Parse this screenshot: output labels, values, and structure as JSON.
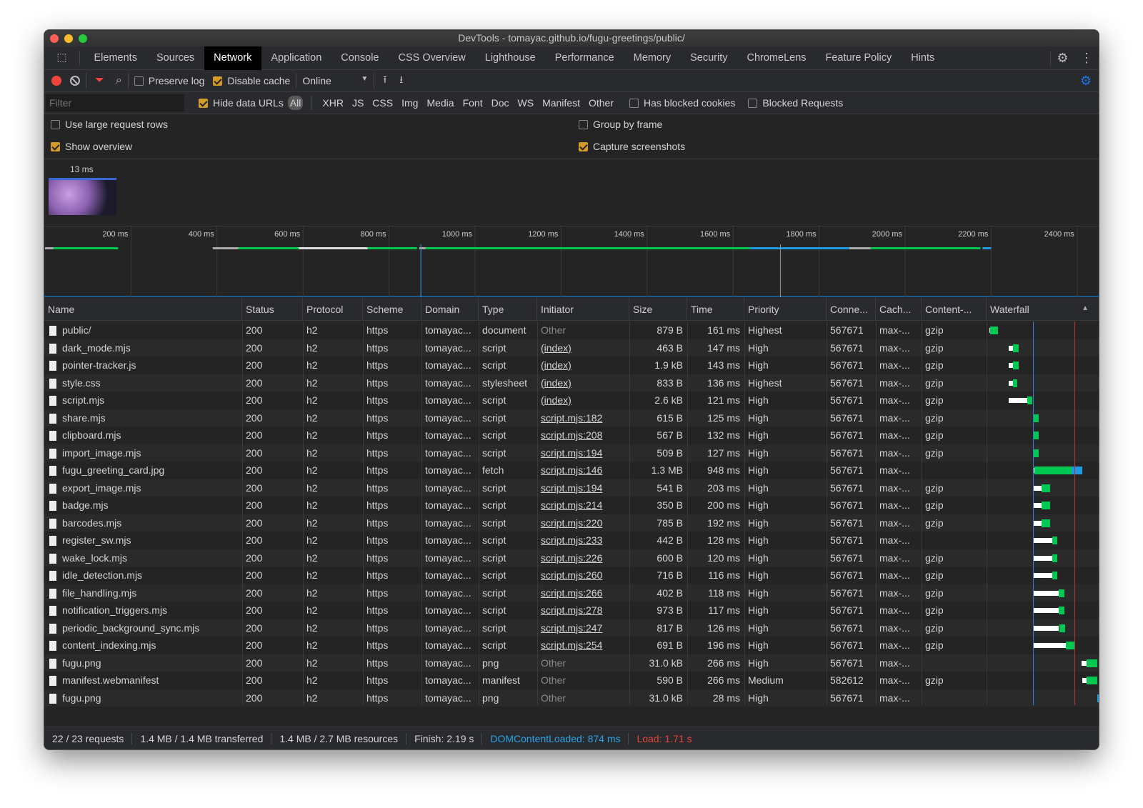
{
  "window": {
    "title": "DevTools - tomayac.github.io/fugu-greetings/public/"
  },
  "tabs": [
    "Elements",
    "Sources",
    "Network",
    "Application",
    "Console",
    "CSS Overview",
    "Lighthouse",
    "Performance",
    "Memory",
    "Security",
    "ChromeLens",
    "Feature Policy",
    "Hints"
  ],
  "active_tab": "Network",
  "toolbar": {
    "preserve_log": "Preserve log",
    "preserve_log_checked": false,
    "disable_cache": "Disable cache",
    "disable_cache_checked": true,
    "throttling": "Online"
  },
  "filter": {
    "placeholder": "Filter",
    "hide_data_urls": "Hide data URLs",
    "hide_data_urls_checked": true,
    "types": [
      "All",
      "XHR",
      "JS",
      "CSS",
      "Img",
      "Media",
      "Font",
      "Doc",
      "WS",
      "Manifest",
      "Other"
    ],
    "active_type": "All",
    "has_blocked_cookies": "Has blocked cookies",
    "blocked_requests": "Blocked Requests"
  },
  "settings": {
    "large_rows": "Use large request rows",
    "large_rows_checked": false,
    "group_by_frame": "Group by frame",
    "group_by_frame_checked": false,
    "show_overview": "Show overview",
    "show_overview_checked": true,
    "capture_screenshots": "Capture screenshots",
    "capture_screenshots_checked": true
  },
  "screenshot": {
    "time": "13 ms"
  },
  "overview": {
    "ticks": [
      "200 ms",
      "400 ms",
      "600 ms",
      "800 ms",
      "1000 ms",
      "1200 ms",
      "1400 ms",
      "1600 ms",
      "1800 ms",
      "2000 ms",
      "2200 ms",
      "2400 ms"
    ]
  },
  "columns": [
    "Name",
    "Status",
    "Protocol",
    "Scheme",
    "Domain",
    "Type",
    "Initiator",
    "Size",
    "Time",
    "Priority",
    "Conne...",
    "Cach...",
    "Content-...",
    "Waterfall"
  ],
  "rows": [
    {
      "name": "public/",
      "status": "200",
      "protocol": "h2",
      "scheme": "https",
      "domain": "tomayac...",
      "type": "document",
      "initiator": "Other",
      "size": "879 B",
      "time": "161 ms",
      "priority": "Highest",
      "conn": "567671",
      "cache": "max-...",
      "encoding": "gzip",
      "wf": [
        0,
        20,
        180
      ]
    },
    {
      "name": "dark_mode.mjs",
      "status": "200",
      "protocol": "h2",
      "scheme": "https",
      "domain": "tomayac...",
      "type": "script",
      "initiator": "(index)",
      "size": "463 B",
      "time": "147 ms",
      "priority": "High",
      "conn": "567671",
      "cache": "max-...",
      "encoding": "gzip",
      "wf": [
        390,
        475,
        590
      ]
    },
    {
      "name": "pointer-tracker.js",
      "status": "200",
      "protocol": "h2",
      "scheme": "https",
      "domain": "tomayac...",
      "type": "script",
      "initiator": "(index)",
      "size": "1.9 kB",
      "time": "143 ms",
      "priority": "High",
      "conn": "567671",
      "cache": "max-...",
      "encoding": "gzip",
      "wf": [
        390,
        475,
        590
      ]
    },
    {
      "name": "style.css",
      "status": "200",
      "protocol": "h2",
      "scheme": "https",
      "domain": "tomayac...",
      "type": "stylesheet",
      "initiator": "(index)",
      "size": "833 B",
      "time": "136 ms",
      "priority": "Highest",
      "conn": "567671",
      "cache": "max-...",
      "encoding": "gzip",
      "wf": [
        390,
        475,
        560
      ]
    },
    {
      "name": "script.mjs",
      "status": "200",
      "protocol": "h2",
      "scheme": "https",
      "domain": "tomayac...",
      "type": "script",
      "initiator": "(index)",
      "size": "2.6 kB",
      "time": "121 ms",
      "priority": "High",
      "conn": "567671",
      "cache": "max-...",
      "encoding": "gzip",
      "wf": [
        390,
        765,
        865
      ]
    },
    {
      "name": "share.mjs",
      "status": "200",
      "protocol": "h2",
      "scheme": "https",
      "domain": "tomayac...",
      "type": "script",
      "initiator": "script.mjs:182",
      "size": "615 B",
      "time": "125 ms",
      "priority": "High",
      "conn": "567671",
      "cache": "max-...",
      "encoding": "gzip",
      "wf": [
        880,
        885,
        990
      ]
    },
    {
      "name": "clipboard.mjs",
      "status": "200",
      "protocol": "h2",
      "scheme": "https",
      "domain": "tomayac...",
      "type": "script",
      "initiator": "script.mjs:208",
      "size": "567 B",
      "time": "132 ms",
      "priority": "High",
      "conn": "567671",
      "cache": "max-...",
      "encoding": "gzip",
      "wf": [
        880,
        885,
        1000
      ]
    },
    {
      "name": "import_image.mjs",
      "status": "200",
      "protocol": "h2",
      "scheme": "https",
      "domain": "tomayac...",
      "type": "script",
      "initiator": "script.mjs:194",
      "size": "509 B",
      "time": "127 ms",
      "priority": "High",
      "conn": "567671",
      "cache": "max-...",
      "encoding": "gzip",
      "wf": [
        880,
        885,
        1000
      ]
    },
    {
      "name": "fugu_greeting_card.jpg",
      "status": "200",
      "protocol": "h2",
      "scheme": "https",
      "domain": "tomayac...",
      "type": "fetch",
      "initiator": "script.mjs:146",
      "size": "1.3 MB",
      "time": "948 ms",
      "priority": "High",
      "conn": "567671",
      "cache": "max-...",
      "encoding": "",
      "wf": [
        900,
        910,
        1870
      ],
      "wf_blue_from": 1655
    },
    {
      "name": "export_image.mjs",
      "status": "200",
      "protocol": "h2",
      "scheme": "https",
      "domain": "tomayac...",
      "type": "script",
      "initiator": "script.mjs:194",
      "size": "541 B",
      "time": "203 ms",
      "priority": "High",
      "conn": "567671",
      "cache": "max-...",
      "encoding": "gzip",
      "wf": [
        880,
        1050,
        1225
      ]
    },
    {
      "name": "badge.mjs",
      "status": "200",
      "protocol": "h2",
      "scheme": "https",
      "domain": "tomayac...",
      "type": "script",
      "initiator": "script.mjs:214",
      "size": "350 B",
      "time": "200 ms",
      "priority": "High",
      "conn": "567671",
      "cache": "max-...",
      "encoding": "gzip",
      "wf": [
        880,
        1050,
        1220
      ]
    },
    {
      "name": "barcodes.mjs",
      "status": "200",
      "protocol": "h2",
      "scheme": "https",
      "domain": "tomayac...",
      "type": "script",
      "initiator": "script.mjs:220",
      "size": "785 B",
      "time": "192 ms",
      "priority": "High",
      "conn": "567671",
      "cache": "max-...",
      "encoding": "gzip",
      "wf": [
        880,
        1050,
        1220
      ]
    },
    {
      "name": "register_sw.mjs",
      "status": "200",
      "protocol": "h2",
      "scheme": "https",
      "domain": "tomayac...",
      "type": "script",
      "initiator": "script.mjs:233",
      "size": "442 B",
      "time": "128 ms",
      "priority": "High",
      "conn": "567671",
      "cache": "max-...",
      "encoding": "",
      "wf": [
        880,
        1270,
        1370
      ]
    },
    {
      "name": "wake_lock.mjs",
      "status": "200",
      "protocol": "h2",
      "scheme": "https",
      "domain": "tomayac...",
      "type": "script",
      "initiator": "script.mjs:226",
      "size": "600 B",
      "time": "120 ms",
      "priority": "High",
      "conn": "567671",
      "cache": "max-...",
      "encoding": "gzip",
      "wf": [
        880,
        1275,
        1375
      ]
    },
    {
      "name": "idle_detection.mjs",
      "status": "200",
      "protocol": "h2",
      "scheme": "https",
      "domain": "tomayac...",
      "type": "script",
      "initiator": "script.mjs:260",
      "size": "716 B",
      "time": "116 ms",
      "priority": "High",
      "conn": "567671",
      "cache": "max-...",
      "encoding": "gzip",
      "wf": [
        880,
        1275,
        1375
      ]
    },
    {
      "name": "file_handling.mjs",
      "status": "200",
      "protocol": "h2",
      "scheme": "https",
      "domain": "tomayac...",
      "type": "script",
      "initiator": "script.mjs:266",
      "size": "402 B",
      "time": "118 ms",
      "priority": "High",
      "conn": "567671",
      "cache": "max-...",
      "encoding": "gzip",
      "wf": [
        880,
        1400,
        1515
      ]
    },
    {
      "name": "notification_triggers.mjs",
      "status": "200",
      "protocol": "h2",
      "scheme": "https",
      "domain": "tomayac...",
      "type": "script",
      "initiator": "script.mjs:278",
      "size": "973 B",
      "time": "117 ms",
      "priority": "High",
      "conn": "567671",
      "cache": "max-...",
      "encoding": "gzip",
      "wf": [
        880,
        1400,
        1515
      ]
    },
    {
      "name": "periodic_background_sync.mjs",
      "status": "200",
      "protocol": "h2",
      "scheme": "https",
      "domain": "tomayac...",
      "type": "script",
      "initiator": "script.mjs:247",
      "size": "817 B",
      "time": "126 ms",
      "priority": "High",
      "conn": "567671",
      "cache": "max-...",
      "encoding": "gzip",
      "wf": [
        885,
        1405,
        1525
      ]
    },
    {
      "name": "content_indexing.mjs",
      "status": "200",
      "protocol": "h2",
      "scheme": "https",
      "domain": "tomayac...",
      "type": "script",
      "initiator": "script.mjs:254",
      "size": "691 B",
      "time": "196 ms",
      "priority": "High",
      "conn": "567671",
      "cache": "max-...",
      "encoding": "gzip",
      "wf": [
        890,
        1540,
        1710
      ]
    },
    {
      "name": "fugu.png",
      "status": "200",
      "protocol": "h2",
      "scheme": "https",
      "domain": "tomayac...",
      "type": "png",
      "initiator": "Other",
      "size": "31.0 kB",
      "time": "266 ms",
      "priority": "High",
      "conn": "567671",
      "cache": "max-...",
      "encoding": "",
      "wf": [
        1860,
        1960,
        2175
      ]
    },
    {
      "name": "manifest.webmanifest",
      "status": "200",
      "protocol": "h2",
      "scheme": "https",
      "domain": "tomayac...",
      "type": "manifest",
      "initiator": "Other",
      "size": "590 B",
      "time": "266 ms",
      "priority": "Medium",
      "conn": "582612",
      "cache": "max-...",
      "encoding": "gzip",
      "wf": [
        1870,
        1960,
        2175
      ]
    },
    {
      "name": "fugu.png",
      "status": "200",
      "protocol": "h2",
      "scheme": "https",
      "domain": "tomayac...",
      "type": "png",
      "initiator": "Other",
      "size": "31.0 kB",
      "time": "28 ms",
      "priority": "High",
      "conn": "567671",
      "cache": "max-...",
      "encoding": "",
      "wf": [
        2175,
        2175,
        2203
      ],
      "wf_blue_from": 2175
    }
  ],
  "waterfall": {
    "dom_content_loaded_ms": 874,
    "load_ms": 1710,
    "sort": "ascending"
  },
  "footer": {
    "requests": "22 / 23 requests",
    "transferred": "1.4 MB / 1.4 MB transferred",
    "resources": "1.4 MB / 2.7 MB resources",
    "finish": "Finish: 2.19 s",
    "dcl": "DOMContentLoaded: 874 ms",
    "load": "Load: 1.71 s"
  },
  "colors": {
    "accent": "#1a73e8",
    "checkbox": "#d39b29",
    "waiting": "#ffffff",
    "download": "#00c853",
    "dcl": "#2aa4e8",
    "load": "#e8453c",
    "record": "#f0453a"
  }
}
